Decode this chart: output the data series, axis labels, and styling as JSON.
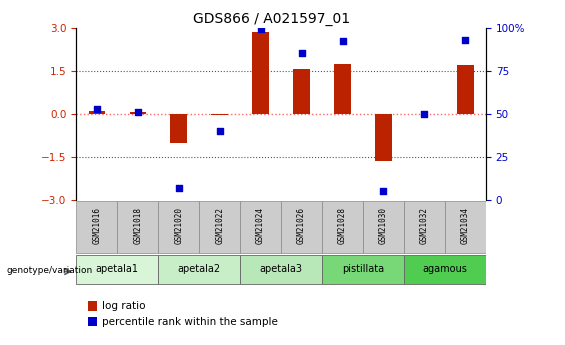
{
  "title": "GDS866 / A021597_01",
  "samples": [
    "GSM21016",
    "GSM21018",
    "GSM21020",
    "GSM21022",
    "GSM21024",
    "GSM21026",
    "GSM21028",
    "GSM21030",
    "GSM21032",
    "GSM21034"
  ],
  "log_ratio": [
    0.1,
    0.05,
    -1.0,
    -0.05,
    2.85,
    1.55,
    1.75,
    -1.65,
    0.0,
    1.7
  ],
  "percentile_rank": [
    53,
    51,
    7,
    40,
    99,
    85,
    92,
    5,
    50,
    93
  ],
  "ylim_left": [
    -3,
    3
  ],
  "yticks_left": [
    -3,
    -1.5,
    0,
    1.5,
    3
  ],
  "ylim_right": [
    0,
    100
  ],
  "yticks_right": [
    0,
    25,
    50,
    75,
    100
  ],
  "groups": [
    {
      "name": "apetala1",
      "samples": [
        0,
        1
      ],
      "color": "#d8f5d8"
    },
    {
      "name": "apetala2",
      "samples": [
        2,
        3
      ],
      "color": "#c8eec8"
    },
    {
      "name": "apetala3",
      "samples": [
        4,
        5
      ],
      "color": "#b8e8b8"
    },
    {
      "name": "pistillata",
      "samples": [
        6,
        7
      ],
      "color": "#78d878"
    },
    {
      "name": "agamous",
      "samples": [
        8,
        9
      ],
      "color": "#50cc50"
    }
  ],
  "bar_color": "#bb2200",
  "dot_color": "#0000cc",
  "hline_color": "#ff6666",
  "dotline_color": "#555555",
  "tick_label_color_left": "#cc2200",
  "tick_label_color_right": "#0000cc",
  "legend_bar_label": "log ratio",
  "legend_dot_label": "percentile rank within the sample",
  "genotype_label": "genotype/variation",
  "background_color": "#ffffff",
  "sample_box_color": "#cccccc",
  "bar_width": 0.4
}
